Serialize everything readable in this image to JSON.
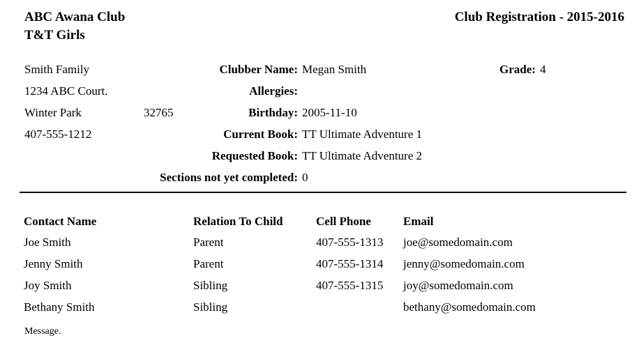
{
  "header": {
    "club_name": "ABC Awana Club",
    "group_name": "T&T Girls",
    "report_title": "Club Registration - 2015-2016"
  },
  "family": {
    "name": "Smith Family",
    "address": "1234 ABC Court.",
    "city": "Winter Park",
    "zip": "32765",
    "phone": "407-555-1212"
  },
  "clubber": {
    "labels": {
      "clubber_name": "Clubber Name:",
      "allergies": "Allergies:",
      "birthday": "Birthday:",
      "current_book": "Current Book:",
      "requested_book": "Requested Book:",
      "sections": "Sections not yet completed:",
      "grade": "Grade:"
    },
    "values": {
      "clubber_name": "Megan Smith",
      "allergies": "",
      "birthday": "2005-11-10",
      "current_book": "TT Ultimate Adventure 1",
      "requested_book": "TT Ultimate Adventure 2",
      "sections": "0",
      "grade": "4"
    }
  },
  "contacts": {
    "headers": [
      "Contact Name",
      "Relation To Child",
      "Cell Phone",
      "Email"
    ],
    "rows": [
      [
        "Joe Smith",
        "Parent",
        "407-555-1313",
        "joe@somedomain.com"
      ],
      [
        "Jenny Smith",
        "Parent",
        "407-555-1314",
        "jenny@somedomain.com"
      ],
      [
        "Joy Smith",
        "Sibling",
        "407-555-1315",
        "joy@somedomain.com"
      ],
      [
        "Bethany Smith",
        "Sibling",
        "",
        "bethany@somedomain.com"
      ]
    ]
  },
  "footer": {
    "message": "Message."
  },
  "colors": {
    "text": "#000000",
    "background": "#ffffff",
    "divider": "#000000"
  }
}
